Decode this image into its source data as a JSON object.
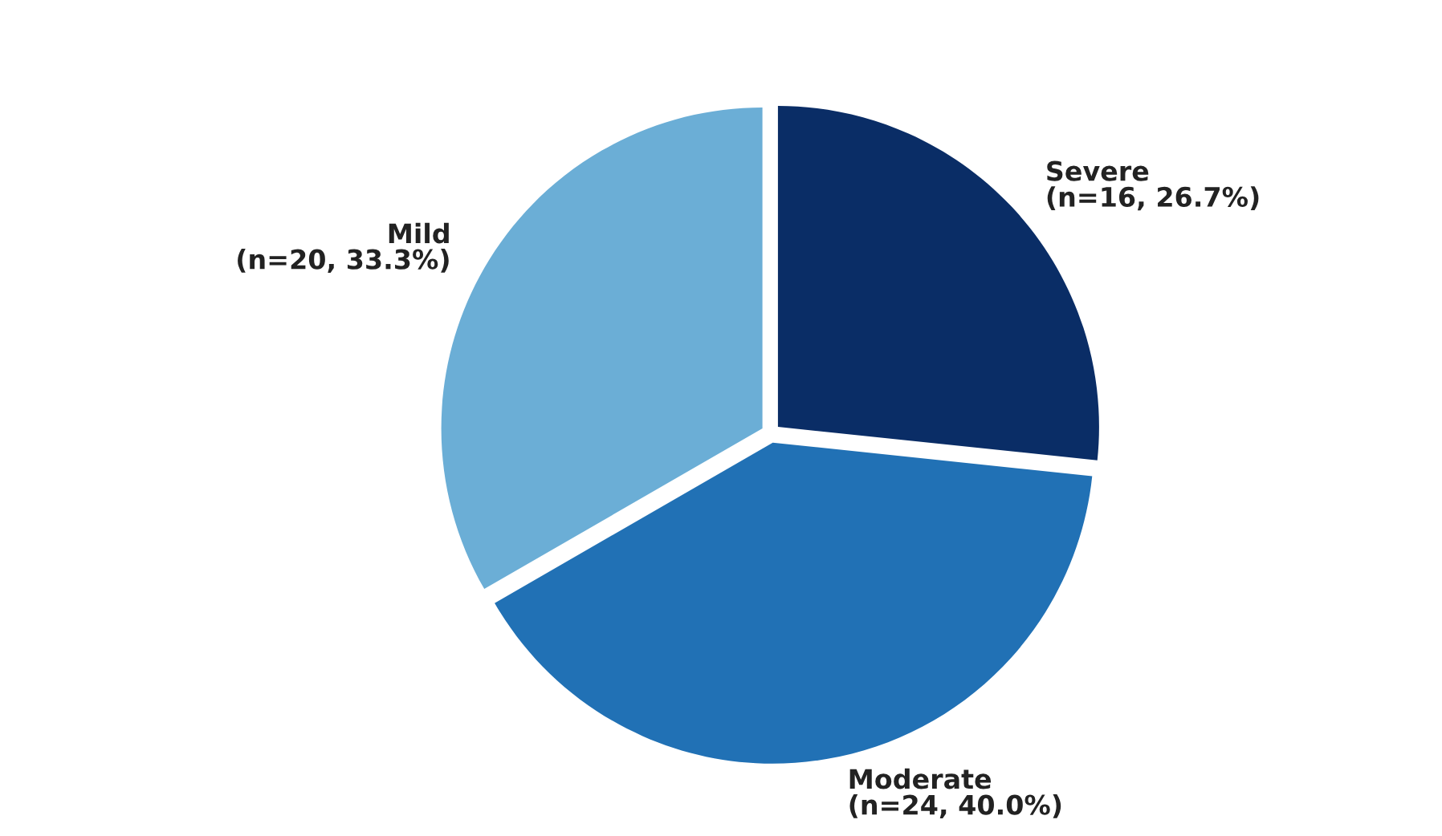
{
  "chart_data": {
    "type": "pie",
    "categories": [
      "Severe",
      "Moderate",
      "Mild"
    ],
    "values": [
      16,
      24,
      20
    ],
    "value_labels": [
      "(n=16, 26.7%)",
      "(n=24, 40.0%)",
      "(n=20, 33.3%)"
    ],
    "colors": [
      "#0a2d66",
      "#2171b5",
      "#6baed6"
    ]
  }
}
